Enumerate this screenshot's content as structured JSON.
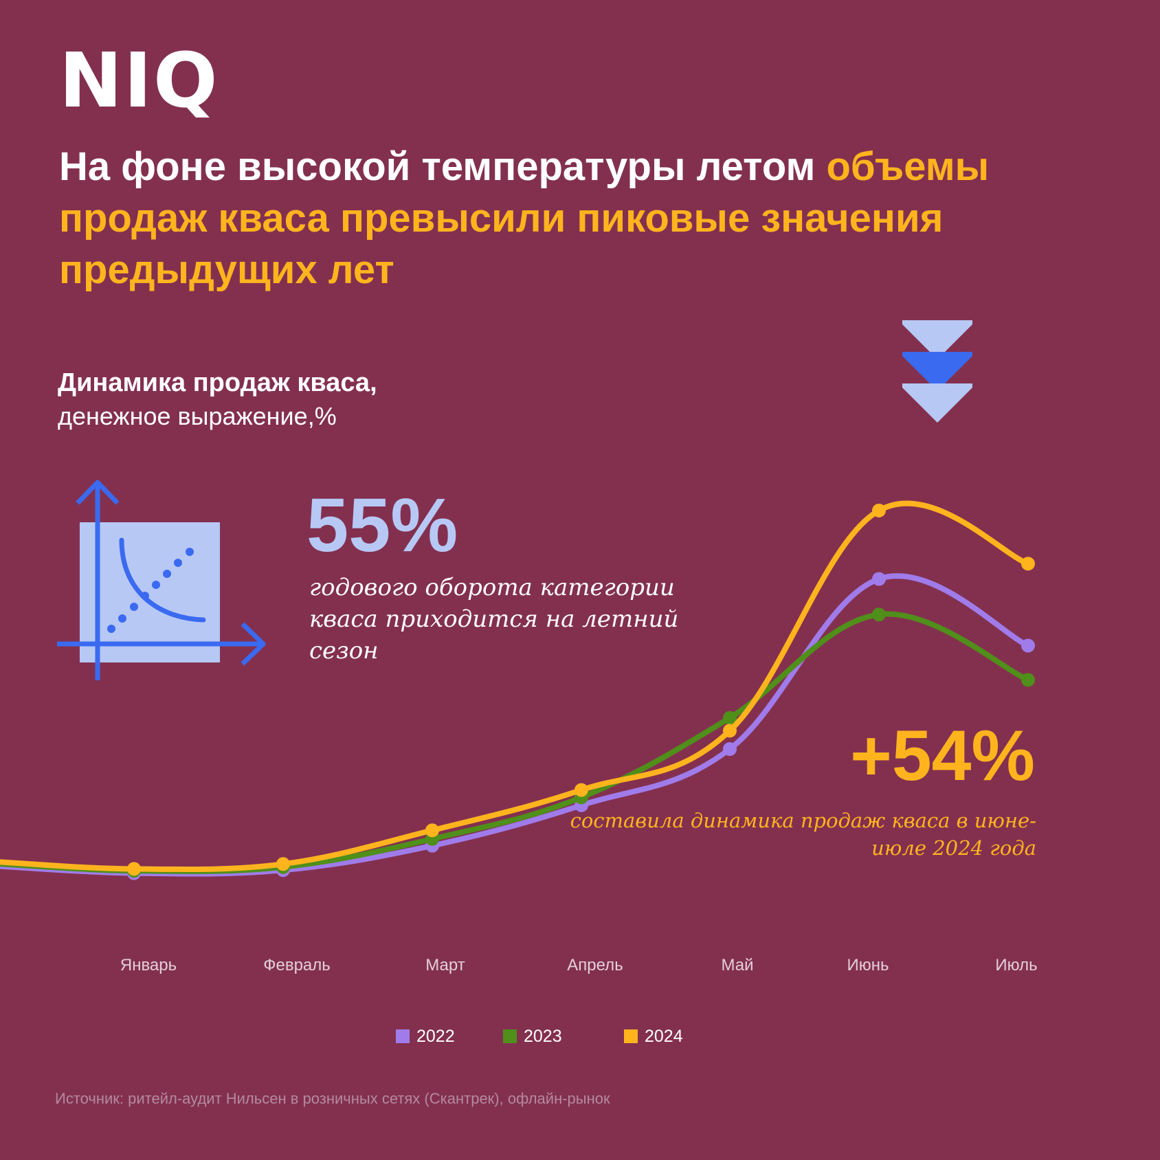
{
  "logo": "NIQ",
  "headline": {
    "white": "На фоне высокой температуры летом ",
    "highlight": "объемы продаж кваса превысили пиковые значения предыдущих лет"
  },
  "chart_title": "Динамика продаж кваса,",
  "chart_subtitle": "денежное выражение,%",
  "stat_summer_share": {
    "value": "55%",
    "text": "годового оборота категории кваса приходится на летний сезон"
  },
  "stat_growth": {
    "value": "+54%",
    "text": "составила динамика продаж кваса в июне-июле 2024 года"
  },
  "source": "Источник: ритейл-аудит Нильсен в розничных сетях (Скантрек), офлайн-рынок",
  "icons": [
    "scatter-chart-icon",
    "chevrons-down-icon"
  ],
  "colors": {
    "background": "#83304F",
    "accent": "#FFB41E",
    "icon_blue": "#3A6AF0",
    "icon_light": "#B7C8F5"
  },
  "chart_data": {
    "type": "line",
    "categories": [
      "Январь",
      "Февраль",
      "Март",
      "Апрель",
      "Май",
      "Июнь",
      "Июль"
    ],
    "series": [
      {
        "name": "2022",
        "color": "#A07CEA",
        "values": [
          3.3,
          3.8,
          7.8,
          14.4,
          23.6,
          51.4,
          40.5
        ]
      },
      {
        "name": "2023",
        "color": "#4F8F1A",
        "values": [
          3.7,
          4.3,
          8.9,
          15.7,
          28.7,
          45.6,
          34.9
        ]
      },
      {
        "name": "2024",
        "color": "#FFB41E",
        "values": [
          4.0,
          4.8,
          10.3,
          16.9,
          26.6,
          62.6,
          53.9
        ]
      }
    ],
    "ylim": [
      0,
      70
    ],
    "grid": false,
    "legend_position": "bottom",
    "xlabel": "",
    "ylabel": ""
  }
}
